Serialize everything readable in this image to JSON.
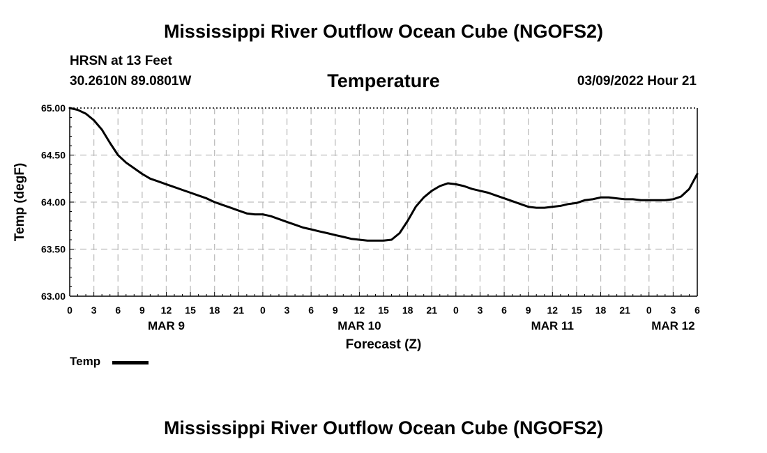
{
  "page": {
    "title": "Mississippi River Outflow Ocean Cube (NGOFS2)",
    "footer_title": "Mississippi River Outflow Ocean Cube (NGOFS2)",
    "station": "HRSN at 13 Feet",
    "coords": "30.2610N  89.0801W",
    "panel_title": "Temperature",
    "run_date": "03/09/2022 Hour 21",
    "legend_label": "Temp"
  },
  "chart_data": {
    "type": "line",
    "title": "Temperature",
    "xlabel": "Forecast (Z)",
    "ylabel": "Temp (degF)",
    "x_hours_range": [
      0,
      78
    ],
    "ylim": [
      63.0,
      65.0
    ],
    "yticks": [
      63.0,
      63.5,
      64.0,
      64.5,
      65.0
    ],
    "ytick_labels": [
      "63.00",
      "63.50",
      "64.00",
      "64.50",
      "65.00"
    ],
    "xtick_hours": [
      0,
      3,
      6,
      9,
      12,
      15,
      18,
      21,
      24,
      27,
      30,
      33,
      36,
      39,
      42,
      45,
      48,
      51,
      54,
      57,
      60,
      63,
      66,
      69,
      72,
      75,
      78
    ],
    "xtick_labels": [
      "0",
      "3",
      "6",
      "9",
      "12",
      "15",
      "18",
      "21",
      "0",
      "3",
      "6",
      "9",
      "12",
      "15",
      "18",
      "21",
      "0",
      "3",
      "6",
      "9",
      "12",
      "15",
      "18",
      "21",
      "0",
      "3",
      "6"
    ],
    "date_labels": [
      {
        "hour": 12,
        "label": "MAR 9"
      },
      {
        "hour": 36,
        "label": "MAR 10"
      },
      {
        "hour": 60,
        "label": "MAR 11"
      },
      {
        "hour": 75,
        "label": "MAR 12"
      }
    ],
    "grid": true,
    "series": [
      {
        "name": "Temp",
        "color": "#000000",
        "x_hours": [
          0,
          1,
          2,
          3,
          4,
          5,
          6,
          7,
          8,
          9,
          10,
          11,
          12,
          13,
          14,
          15,
          16,
          17,
          18,
          19,
          20,
          21,
          22,
          23,
          24,
          25,
          26,
          27,
          28,
          29,
          30,
          31,
          32,
          33,
          34,
          35,
          36,
          37,
          38,
          39,
          40,
          41,
          42,
          43,
          44,
          45,
          46,
          47,
          48,
          49,
          50,
          51,
          52,
          53,
          54,
          55,
          56,
          57,
          58,
          59,
          60,
          61,
          62,
          63,
          64,
          65,
          66,
          67,
          68,
          69,
          70,
          71,
          72,
          73,
          74,
          75,
          76,
          77,
          78
        ],
        "values": [
          65.0,
          64.98,
          64.94,
          64.87,
          64.77,
          64.63,
          64.5,
          64.42,
          64.36,
          64.3,
          64.25,
          64.22,
          64.19,
          64.16,
          64.13,
          64.1,
          64.07,
          64.04,
          64.0,
          63.97,
          63.94,
          63.91,
          63.88,
          63.87,
          63.87,
          63.85,
          63.82,
          63.79,
          63.76,
          63.73,
          63.71,
          63.69,
          63.67,
          63.65,
          63.63,
          63.61,
          63.6,
          63.59,
          63.59,
          63.59,
          63.6,
          63.67,
          63.8,
          63.95,
          64.05,
          64.12,
          64.17,
          64.2,
          64.19,
          64.17,
          64.14,
          64.12,
          64.1,
          64.07,
          64.04,
          64.01,
          63.98,
          63.95,
          63.94,
          63.94,
          63.95,
          63.96,
          63.98,
          63.99,
          64.02,
          64.03,
          64.05,
          64.05,
          64.04,
          64.03,
          64.03,
          64.02,
          64.02,
          64.02,
          64.02,
          64.03,
          64.06,
          64.14,
          64.3
        ]
      }
    ]
  }
}
